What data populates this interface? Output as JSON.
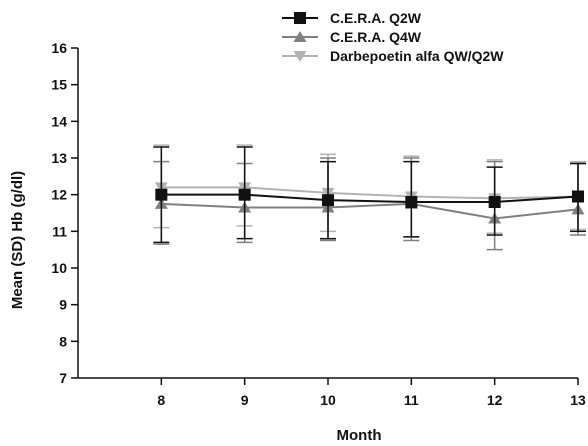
{
  "chart_data": {
    "type": "line",
    "title": "",
    "xlabel": "Month",
    "ylabel": "Mean (SD) Hb (g/dl)",
    "x": [
      8,
      9,
      10,
      11,
      12,
      13
    ],
    "xlim": [
      7,
      13
    ],
    "ylim": [
      7,
      16
    ],
    "yticks": [
      7,
      8,
      9,
      10,
      11,
      12,
      13,
      14,
      15,
      16
    ],
    "grid": false,
    "legend_position": "top-center",
    "series": [
      {
        "name": "C.E.R.A. Q2W",
        "marker": "square",
        "color": "#111111",
        "values": [
          12.0,
          12.0,
          11.85,
          11.8,
          11.8,
          11.95
        ],
        "sd_low": [
          10.7,
          10.8,
          10.8,
          10.85,
          10.9,
          11.0
        ],
        "sd_high": [
          13.3,
          13.3,
          12.9,
          12.9,
          12.75,
          12.85
        ]
      },
      {
        "name": "C.E.R.A. Q4W",
        "marker": "triangle-up",
        "color": "#808080",
        "values": [
          11.75,
          11.65,
          11.65,
          11.75,
          11.35,
          11.6
        ],
        "sd_low": [
          10.65,
          10.7,
          10.75,
          10.75,
          10.5,
          10.9
        ],
        "sd_high": [
          12.9,
          12.85,
          13.0,
          13.0,
          12.9,
          12.85
        ]
      },
      {
        "name": "Darbepoetin alfa QW/Q2W",
        "marker": "triangle-down",
        "color": "#b3b3b3",
        "values": [
          12.2,
          12.2,
          12.05,
          11.95,
          11.9,
          11.95
        ],
        "sd_low": [
          11.1,
          11.15,
          11.0,
          10.85,
          10.95,
          11.05
        ],
        "sd_high": [
          13.35,
          13.35,
          13.1,
          13.05,
          12.95,
          12.9
        ]
      }
    ]
  }
}
